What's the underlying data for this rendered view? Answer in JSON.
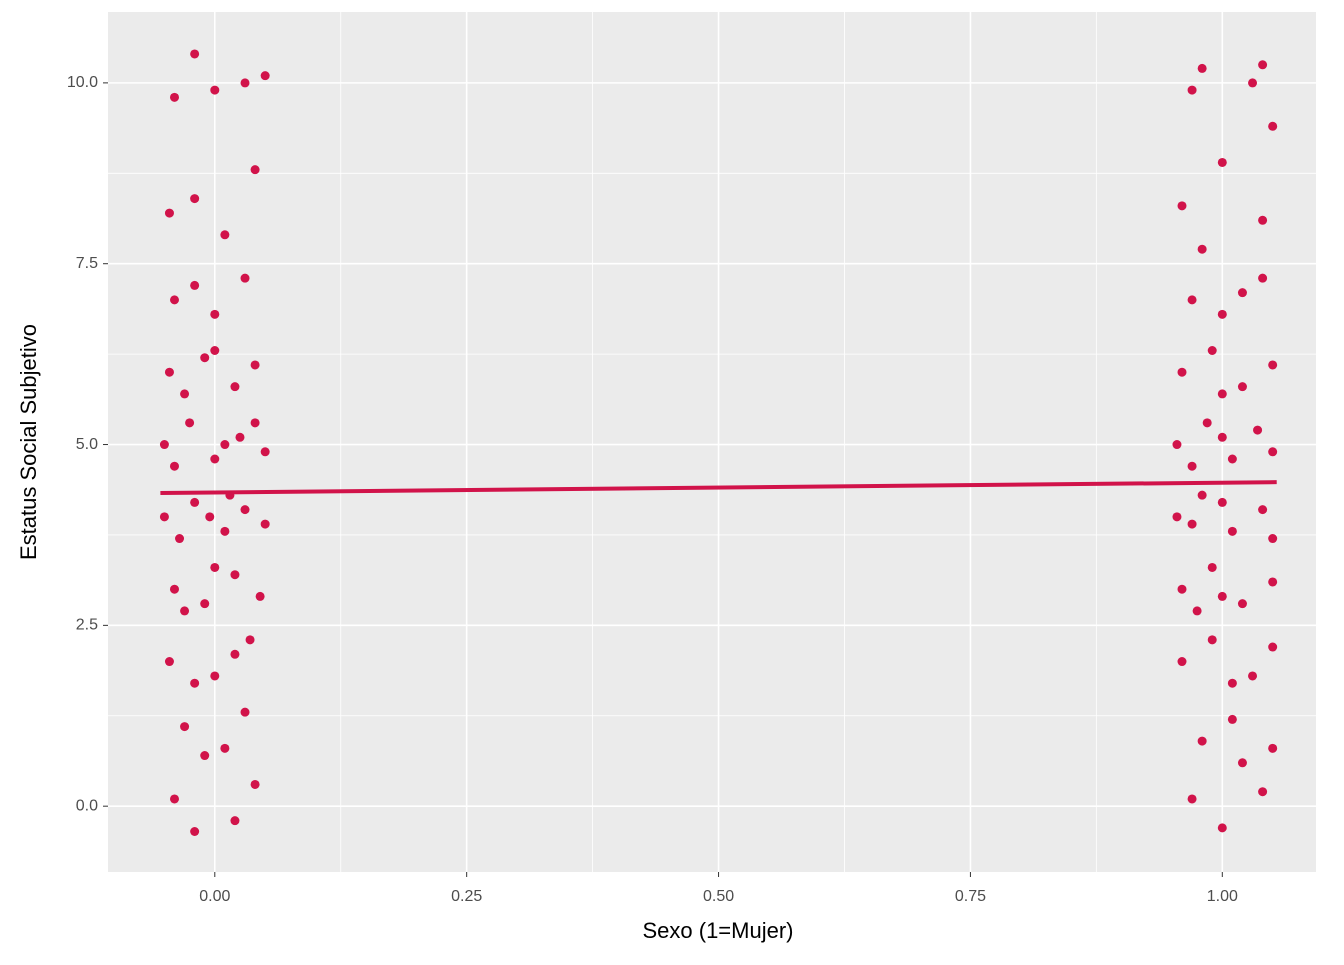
{
  "chart_data": {
    "type": "scatter",
    "x_label": "Sexo (1=Mujer)",
    "y_label": "Estatus Social Subjetivo",
    "color": "#d1134a",
    "xlim": [
      -0.106,
      1.093
    ],
    "ylim": [
      -0.91,
      10.98
    ],
    "xticks": [
      {
        "value": 0,
        "label": "0.00"
      },
      {
        "value": 0.25,
        "label": "0.25"
      },
      {
        "value": 0.5,
        "label": "0.50"
      },
      {
        "value": 0.75,
        "label": "0.75"
      },
      {
        "value": 1,
        "label": "1.00"
      }
    ],
    "yticks": [
      {
        "value": 0,
        "label": "0.0"
      },
      {
        "value": 2.5,
        "label": "2.5"
      },
      {
        "value": 5,
        "label": "5.0"
      },
      {
        "value": 7.5,
        "label": "7.5"
      },
      {
        "value": 10,
        "label": "10.0"
      }
    ],
    "grid": true,
    "points": {
      "x": [
        -0.04,
        0.02,
        0.04,
        -0.02,
        -0.03,
        0.01,
        0.03,
        -0.01,
        -0.045,
        0.0,
        0.035,
        -0.02,
        0.02,
        -0.04,
        -0.01,
        0.02,
        0.045,
        0.0,
        -0.03,
        -0.05,
        -0.02,
        0.01,
        0.03,
        0.05,
        -0.035,
        0.015,
        -0.005,
        -0.05,
        -0.025,
        0.0,
        0.025,
        0.05,
        -0.04,
        0.04,
        0.01,
        -0.045,
        -0.01,
        0.02,
        0.04,
        -0.03,
        0.0,
        -0.04,
        0.0,
        0.03,
        -0.02,
        -0.045,
        0.01,
        0.04,
        -0.02,
        -0.04,
        0.0,
        0.03,
        0.05,
        -0.02,
        0.97,
        1.0,
        1.04,
        1.02,
        0.98,
        1.01,
        1.05,
        0.96,
        0.99,
        1.03,
        1.05,
        1.01,
        0.96,
        0.99,
        1.02,
        1.05,
        1.0,
        0.975,
        0.955,
        0.98,
        1.01,
        1.04,
        1.05,
        1.0,
        0.97,
        0.955,
        0.985,
        1.01,
        1.035,
        1.05,
        1.0,
        0.97,
        0.96,
        0.99,
        1.02,
        1.05,
        1.0,
        0.97,
        1.0,
        1.04,
        1.02,
        0.96,
        1.0,
        1.04,
        0.98,
        0.97,
        0.98,
        1.03,
        1.05,
        1.04
      ],
      "y": [
        0.1,
        -0.2,
        0.3,
        -0.35,
        1.1,
        0.8,
        1.3,
        0.7,
        2.0,
        1.8,
        2.3,
        1.7,
        2.1,
        3.0,
        2.8,
        3.2,
        2.9,
        3.3,
        2.7,
        4.0,
        4.2,
        3.8,
        4.1,
        3.9,
        3.7,
        4.3,
        4.0,
        5.0,
        5.3,
        4.8,
        5.1,
        4.9,
        4.7,
        5.3,
        5.0,
        6.0,
        6.2,
        5.8,
        6.1,
        5.7,
        6.3,
        7.0,
        6.8,
        7.3,
        7.2,
        8.2,
        7.9,
        8.8,
        8.4,
        9.8,
        9.9,
        10.0,
        10.1,
        10.4,
        0.1,
        -0.3,
        0.2,
        0.6,
        0.9,
        1.2,
        0.8,
        2.0,
        2.3,
        1.8,
        2.2,
        1.7,
        3.0,
        3.3,
        2.8,
        3.1,
        2.9,
        2.7,
        4.0,
        4.3,
        3.8,
        4.1,
        3.7,
        4.2,
        3.9,
        5.0,
        5.3,
        4.8,
        5.2,
        4.9,
        5.1,
        4.7,
        6.0,
        6.3,
        5.8,
        6.1,
        5.7,
        7.0,
        6.8,
        7.3,
        7.1,
        8.3,
        8.9,
        8.1,
        7.7,
        9.9,
        10.2,
        10.0,
        9.4,
        10.25
      ]
    },
    "line": {
      "x": [
        -0.054,
        1.054
      ],
      "y": [
        4.33,
        4.48
      ]
    }
  }
}
